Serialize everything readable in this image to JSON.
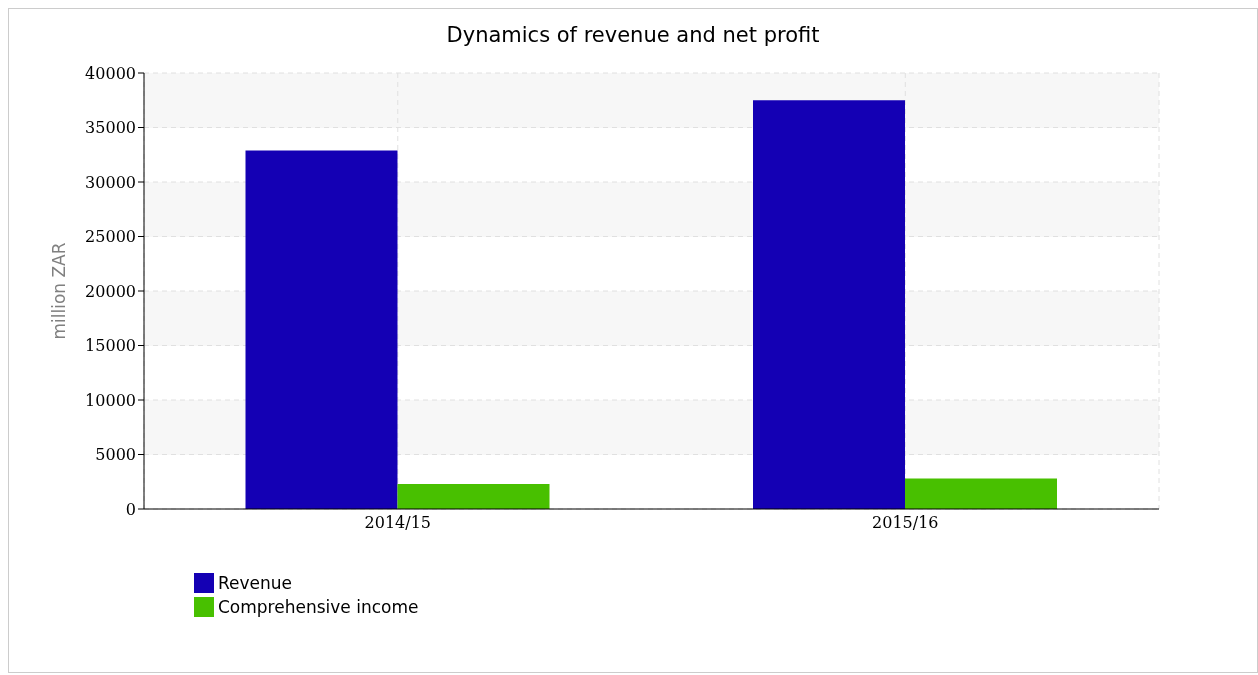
{
  "chart_data": {
    "type": "bar",
    "title": "Dynamics of revenue and net profit",
    "ylabel": "million ZAR",
    "categories": [
      "2014/15",
      "2015/16"
    ],
    "series": [
      {
        "name": "Revenue",
        "color": "#1400b4",
        "values": [
          32900,
          37500
        ]
      },
      {
        "name": "Comprehensive income",
        "color": "#48c000",
        "values": [
          2300,
          2800
        ]
      }
    ],
    "ylim": [
      0,
      40000
    ],
    "yticks": [
      0,
      5000,
      10000,
      15000,
      20000,
      25000,
      30000,
      35000,
      40000
    ],
    "grid": true,
    "legend": "bottom left"
  }
}
